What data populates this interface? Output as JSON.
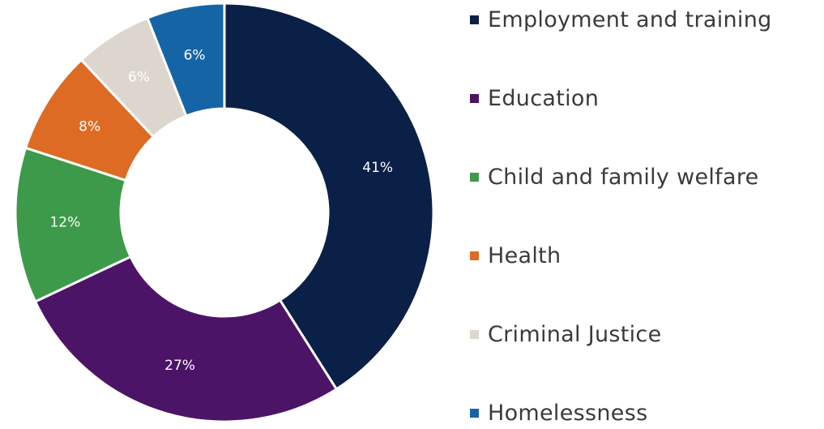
{
  "chart_data": {
    "type": "pie",
    "donut": true,
    "categories": [
      "Employment and training",
      "Education",
      "Child and family welfare",
      "Health",
      "Criminal Justice",
      "Homelessness"
    ],
    "values": [
      41,
      27,
      12,
      8,
      6,
      6
    ],
    "data_labels": [
      "41%",
      "27%",
      "12%",
      "8%",
      "6%",
      "6%"
    ],
    "colors": [
      "#0b2046",
      "#4b1467",
      "#3d9a4a",
      "#dd6b23",
      "#ddd6cf",
      "#1565a6"
    ],
    "legend_position": "right",
    "start_angle": "12 o'clock",
    "direction": "clockwise"
  }
}
